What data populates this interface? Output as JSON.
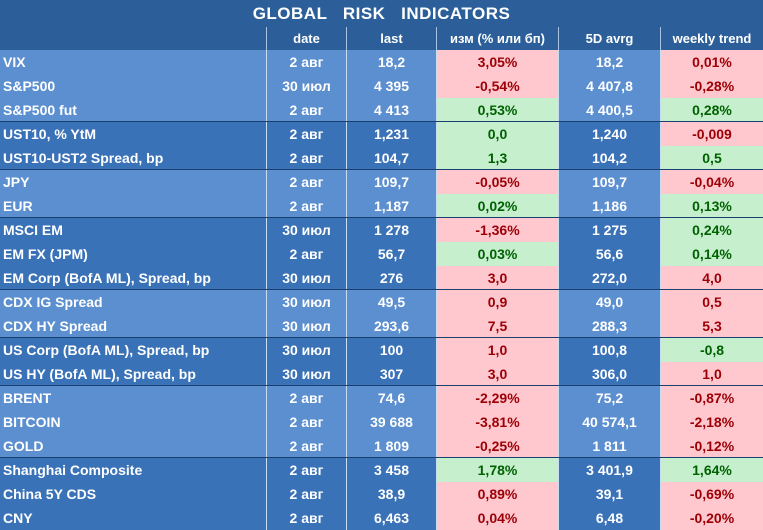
{
  "title": "GLOBAL   RISK   INDICATORS",
  "colors": {
    "header_bg": "#2c5f99",
    "group_a_bg": "#5b8fd0",
    "group_b_bg": "#3a72b8",
    "positive_bg": "#c6efce",
    "positive_text": "#006100",
    "negative_bg": "#ffc7ce",
    "negative_text": "#9c0006"
  },
  "columns": [
    "",
    "date",
    "last",
    "изм (% или бп)",
    "5D avrg",
    "weekly trend"
  ],
  "groups": [
    {
      "shade": "a",
      "rows": [
        {
          "name": "VIX",
          "date": "2 авг",
          "last": "18,2",
          "change": "3,05%",
          "change_sign": "neg",
          "avg5d": "18,2",
          "weekly": "0,01%",
          "weekly_sign": "neg"
        },
        {
          "name": "S&P500",
          "date": "30 июл",
          "last": "4 395",
          "change": "-0,54%",
          "change_sign": "neg",
          "avg5d": "4 407,8",
          "weekly": "-0,28%",
          "weekly_sign": "neg"
        },
        {
          "name": "S&P500 fut",
          "date": "2 авг",
          "last": "4 413",
          "change": "0,53%",
          "change_sign": "pos",
          "avg5d": "4 400,5",
          "weekly": "0,28%",
          "weekly_sign": "pos"
        }
      ]
    },
    {
      "shade": "b",
      "rows": [
        {
          "name": "UST10, % YtM",
          "date": "2 авг",
          "last": "1,231",
          "change": "0,0",
          "change_sign": "pos",
          "avg5d": "1,240",
          "weekly": "-0,009",
          "weekly_sign": "neg"
        },
        {
          "name": "UST10-UST2 Spread, bp",
          "date": "2 авг",
          "last": "104,7",
          "change": "1,3",
          "change_sign": "pos",
          "avg5d": "104,2",
          "weekly": "0,5",
          "weekly_sign": "pos"
        }
      ]
    },
    {
      "shade": "a",
      "rows": [
        {
          "name": "JPY",
          "date": "2 авг",
          "last": "109,7",
          "change": "-0,05%",
          "change_sign": "neg",
          "avg5d": "109,7",
          "weekly": "-0,04%",
          "weekly_sign": "neg"
        },
        {
          "name": "EUR",
          "date": "2 авг",
          "last": "1,187",
          "change": "0,02%",
          "change_sign": "pos",
          "avg5d": "1,186",
          "weekly": "0,13%",
          "weekly_sign": "pos"
        }
      ]
    },
    {
      "shade": "b",
      "rows": [
        {
          "name": "MSCI EM",
          "date": "30 июл",
          "last": "1 278",
          "change": "-1,36%",
          "change_sign": "neg",
          "avg5d": "1 275",
          "weekly": "0,24%",
          "weekly_sign": "pos"
        },
        {
          "name": "EM FX (JPM)",
          "date": "2 авг",
          "last": "56,7",
          "change": "0,03%",
          "change_sign": "pos",
          "avg5d": "56,6",
          "weekly": "0,14%",
          "weekly_sign": "pos"
        },
        {
          "name": "EM Corp (BofA ML), Spread, bp",
          "date": "30 июл",
          "last": "276",
          "change": "3,0",
          "change_sign": "neg",
          "avg5d": "272,0",
          "weekly": "4,0",
          "weekly_sign": "neg"
        }
      ]
    },
    {
      "shade": "a",
      "rows": [
        {
          "name": "CDX IG Spread",
          "date": "30 июл",
          "last": "49,5",
          "change": "0,9",
          "change_sign": "neg",
          "avg5d": "49,0",
          "weekly": "0,5",
          "weekly_sign": "neg"
        },
        {
          "name": "CDX HY Spread",
          "date": "30 июл",
          "last": "293,6",
          "change": "7,5",
          "change_sign": "neg",
          "avg5d": "288,3",
          "weekly": "5,3",
          "weekly_sign": "neg"
        }
      ]
    },
    {
      "shade": "b",
      "rows": [
        {
          "name": "US Corp (BofA ML), Spread, bp",
          "date": "30 июл",
          "last": "100",
          "change": "1,0",
          "change_sign": "neg",
          "avg5d": "100,8",
          "weekly": "-0,8",
          "weekly_sign": "pos"
        },
        {
          "name": "US HY (BofA ML), Spread, bp",
          "date": "30 июл",
          "last": "307",
          "change": "3,0",
          "change_sign": "neg",
          "avg5d": "306,0",
          "weekly": "1,0",
          "weekly_sign": "neg"
        }
      ]
    },
    {
      "shade": "a",
      "rows": [
        {
          "name": "BRENT",
          "date": "2 авг",
          "last": "74,6",
          "change": "-2,29%",
          "change_sign": "neg",
          "avg5d": "75,2",
          "weekly": "-0,87%",
          "weekly_sign": "neg"
        },
        {
          "name": "BITCOIN",
          "date": "2 авг",
          "last": "39 688",
          "change": "-3,81%",
          "change_sign": "neg",
          "avg5d": "40 574,1",
          "weekly": "-2,18%",
          "weekly_sign": "neg"
        },
        {
          "name": "GOLD",
          "date": "2 авг",
          "last": "1 809",
          "change": "-0,25%",
          "change_sign": "neg",
          "avg5d": "1 811",
          "weekly": "-0,12%",
          "weekly_sign": "neg"
        }
      ]
    },
    {
      "shade": "b",
      "rows": [
        {
          "name": "Shanghai Composite",
          "date": "2 авг",
          "last": "3 458",
          "change": "1,78%",
          "change_sign": "pos",
          "avg5d": "3 401,9",
          "weekly": "1,64%",
          "weekly_sign": "pos"
        },
        {
          "name": "China 5Y CDS",
          "date": "2 авг",
          "last": "38,9",
          "change": "0,89%",
          "change_sign": "neg",
          "avg5d": "39,1",
          "weekly": "-0,69%",
          "weekly_sign": "neg"
        },
        {
          "name": "CNY",
          "date": "2 авг",
          "last": "6,463",
          "change": "0,04%",
          "change_sign": "neg",
          "avg5d": "6,48",
          "weekly": "-0,20%",
          "weekly_sign": "neg"
        }
      ]
    }
  ]
}
